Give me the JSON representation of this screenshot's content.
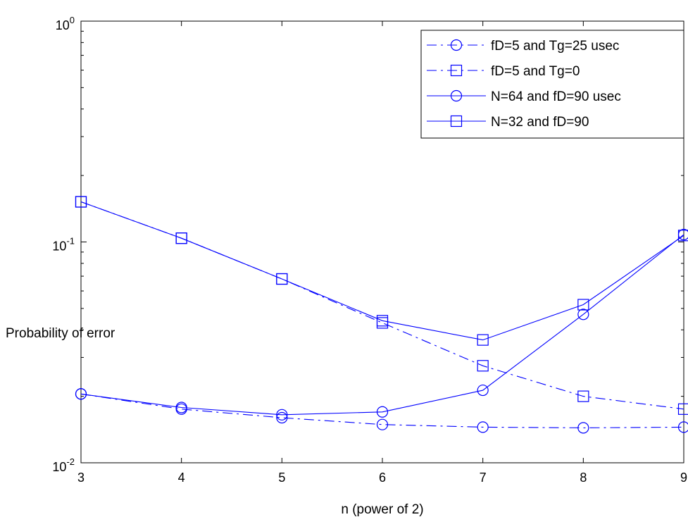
{
  "chart_data": {
    "type": "line",
    "title": "",
    "xlabel": "n (power of 2)",
    "ylabel": "Probability of error",
    "xlim": [
      3,
      9
    ],
    "ylim": [
      0.01,
      1
    ],
    "yscale": "log",
    "grid": false,
    "legend_position": "top-right",
    "x": [
      3,
      4,
      5,
      6,
      7,
      8,
      9
    ],
    "x_tick_labels": [
      "3",
      "4",
      "5",
      "6",
      "7",
      "8",
      "9"
    ],
    "y_tick_labels": [
      {
        "base": "10",
        "exp": "-2",
        "value": 0.01
      },
      {
        "base": "10",
        "exp": "-1",
        "value": 0.1
      },
      {
        "base": "10",
        "exp": "0",
        "value": 1
      }
    ],
    "series": [
      {
        "name": "fD=5 and Tg=25 usec",
        "line_style": "dashdot",
        "marker": "circle",
        "color": "#0000ff",
        "values": [
          0.0205,
          0.0175,
          0.016,
          0.0149,
          0.0145,
          0.0144,
          0.0145
        ]
      },
      {
        "name": "fD=5 and Tg=0",
        "line_style": "dashdot",
        "marker": "square",
        "color": "#0000ff",
        "values": [
          0.152,
          0.104,
          0.068,
          0.043,
          0.0275,
          0.02,
          0.0175
        ]
      },
      {
        "name": "N=64 and fD=90 usec",
        "line_style": "solid",
        "marker": "circle",
        "color": "#0000ff",
        "values": [
          0.0205,
          0.0178,
          0.0165,
          0.017,
          0.0213,
          0.047,
          0.108
        ]
      },
      {
        "name": "N=32 and fD=90",
        "line_style": "solid",
        "marker": "square",
        "color": "#0000ff",
        "values": [
          0.152,
          0.104,
          0.068,
          0.044,
          0.036,
          0.052,
          0.107
        ]
      }
    ]
  }
}
